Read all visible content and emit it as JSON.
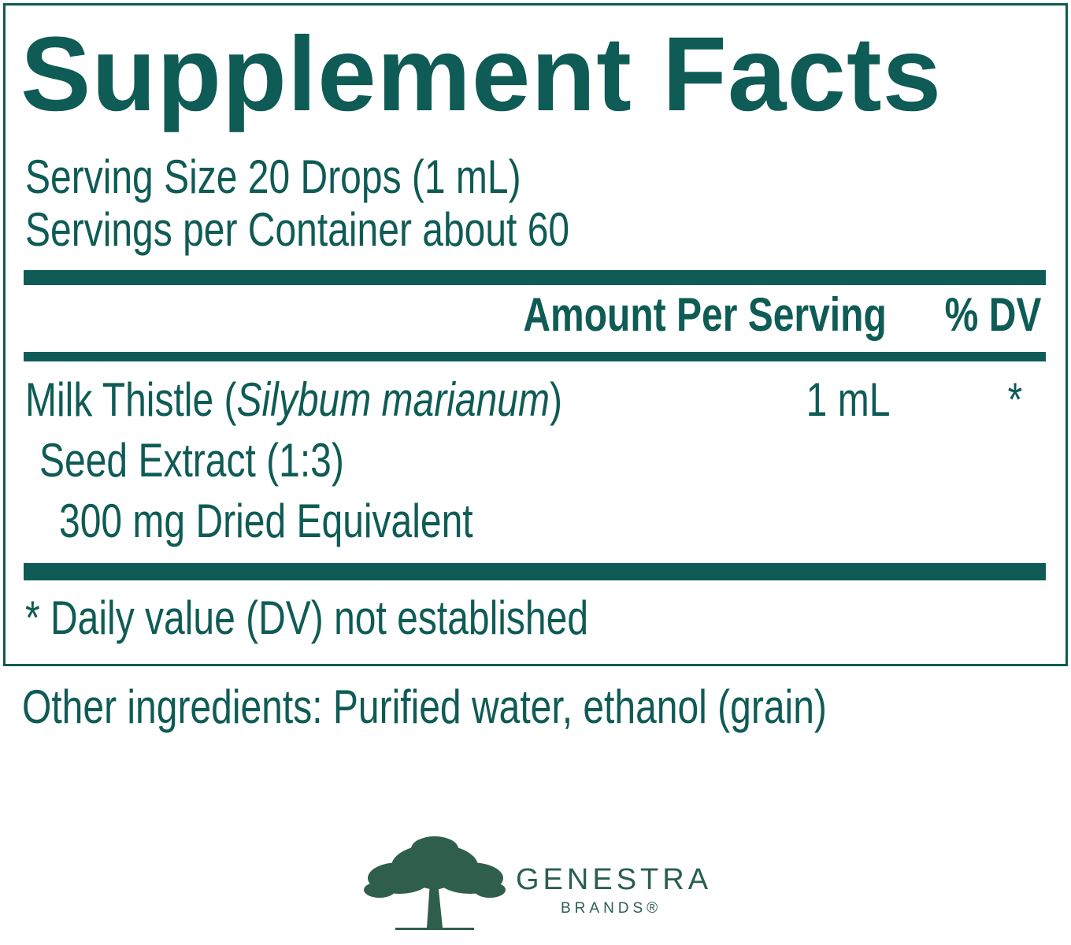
{
  "title": "Supplement Facts",
  "serving_size": "Serving Size 20 Drops (1 mL)",
  "servings_per_container": "Servings per Container about 60",
  "table": {
    "header": {
      "amount": "Amount Per Serving",
      "dv": "% DV"
    },
    "rows": [
      {
        "name_prefix": "Milk Thistle (",
        "name_italic": "Silybum marianum",
        "name_suffix": ")",
        "detail_1": "Seed Extract (1:3)",
        "detail_2": "300 mg Dried Equivalent",
        "amount": "1 mL",
        "dv": "*"
      }
    ]
  },
  "footnote": "* Daily value (DV) not established",
  "other_ingredients": "Other ingredients: Purified water, ethanol (grain)",
  "brand": {
    "name": "GENESTRA",
    "sub": "BRANDS®"
  }
}
